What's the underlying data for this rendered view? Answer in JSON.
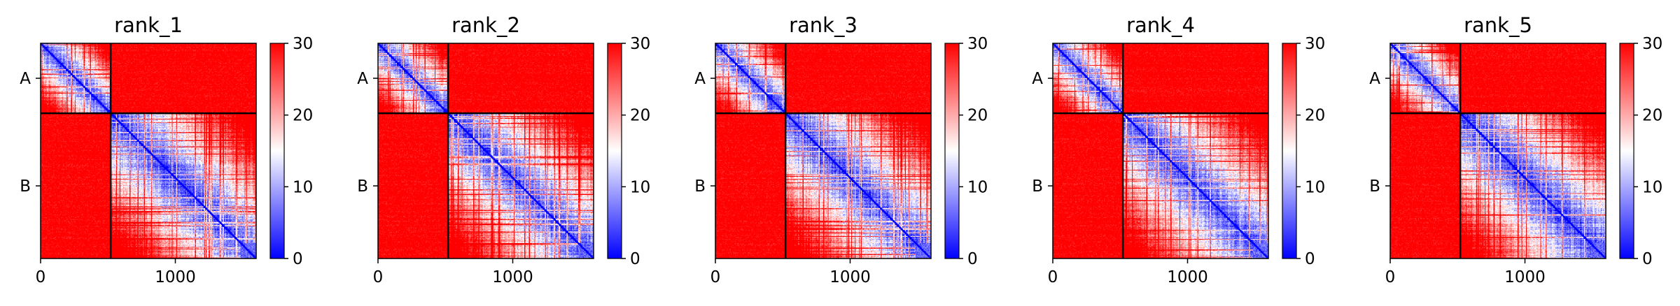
{
  "chart_data": [
    {
      "type": "heatmap",
      "title": "rank_1",
      "x_ticks": [
        {
          "value": 0,
          "label": "0"
        },
        {
          "value": 1000,
          "label": "1000"
        }
      ],
      "xlim": [
        0,
        1600
      ],
      "y_ticks": [
        {
          "label": "A",
          "value": 260
        },
        {
          "label": "B",
          "value": 1060
        }
      ],
      "regions": [
        {
          "label": "A",
          "start": 0,
          "end": 520
        },
        {
          "label": "B",
          "start": 520,
          "end": 1600
        }
      ],
      "colorbar": {
        "min": 0,
        "max": 30,
        "ticks": [
          0,
          10,
          20,
          30
        ],
        "colors": [
          "#0000ff",
          "#ffffff",
          "#ff0000"
        ]
      }
    },
    {
      "type": "heatmap",
      "title": "rank_2",
      "x_ticks": [
        {
          "value": 0,
          "label": "0"
        },
        {
          "value": 1000,
          "label": "1000"
        }
      ],
      "xlim": [
        0,
        1600
      ],
      "y_ticks": [
        {
          "label": "A",
          "value": 260
        },
        {
          "label": "B",
          "value": 1060
        }
      ],
      "regions": [
        {
          "label": "A",
          "start": 0,
          "end": 520
        },
        {
          "label": "B",
          "start": 520,
          "end": 1600
        }
      ],
      "colorbar": {
        "min": 0,
        "max": 30,
        "ticks": [
          0,
          10,
          20,
          30
        ],
        "colors": [
          "#0000ff",
          "#ffffff",
          "#ff0000"
        ]
      }
    },
    {
      "type": "heatmap",
      "title": "rank_3",
      "x_ticks": [
        {
          "value": 0,
          "label": "0"
        },
        {
          "value": 1000,
          "label": "1000"
        }
      ],
      "xlim": [
        0,
        1600
      ],
      "y_ticks": [
        {
          "label": "A",
          "value": 260
        },
        {
          "label": "B",
          "value": 1060
        }
      ],
      "regions": [
        {
          "label": "A",
          "start": 0,
          "end": 520
        },
        {
          "label": "B",
          "start": 520,
          "end": 1600
        }
      ],
      "colorbar": {
        "min": 0,
        "max": 30,
        "ticks": [
          0,
          10,
          20,
          30
        ],
        "colors": [
          "#0000ff",
          "#ffffff",
          "#ff0000"
        ]
      }
    },
    {
      "type": "heatmap",
      "title": "rank_4",
      "x_ticks": [
        {
          "value": 0,
          "label": "0"
        },
        {
          "value": 1000,
          "label": "1000"
        }
      ],
      "xlim": [
        0,
        1600
      ],
      "y_ticks": [
        {
          "label": "A",
          "value": 260
        },
        {
          "label": "B",
          "value": 1060
        }
      ],
      "regions": [
        {
          "label": "A",
          "start": 0,
          "end": 520
        },
        {
          "label": "B",
          "start": 520,
          "end": 1600
        }
      ],
      "colorbar": {
        "min": 0,
        "max": 30,
        "ticks": [
          0,
          10,
          20,
          30
        ],
        "colors": [
          "#0000ff",
          "#ffffff",
          "#ff0000"
        ]
      }
    },
    {
      "type": "heatmap",
      "title": "rank_5",
      "x_ticks": [
        {
          "value": 0,
          "label": "0"
        },
        {
          "value": 1000,
          "label": "1000"
        }
      ],
      "xlim": [
        0,
        1600
      ],
      "y_ticks": [
        {
          "label": "A",
          "value": 260
        },
        {
          "label": "B",
          "value": 1060
        }
      ],
      "regions": [
        {
          "label": "A",
          "start": 0,
          "end": 520
        },
        {
          "label": "B",
          "start": 520,
          "end": 1600
        }
      ],
      "colorbar": {
        "min": 0,
        "max": 30,
        "ticks": [
          0,
          10,
          20,
          30
        ],
        "colors": [
          "#0000ff",
          "#ffffff",
          "#ff0000"
        ]
      }
    }
  ]
}
